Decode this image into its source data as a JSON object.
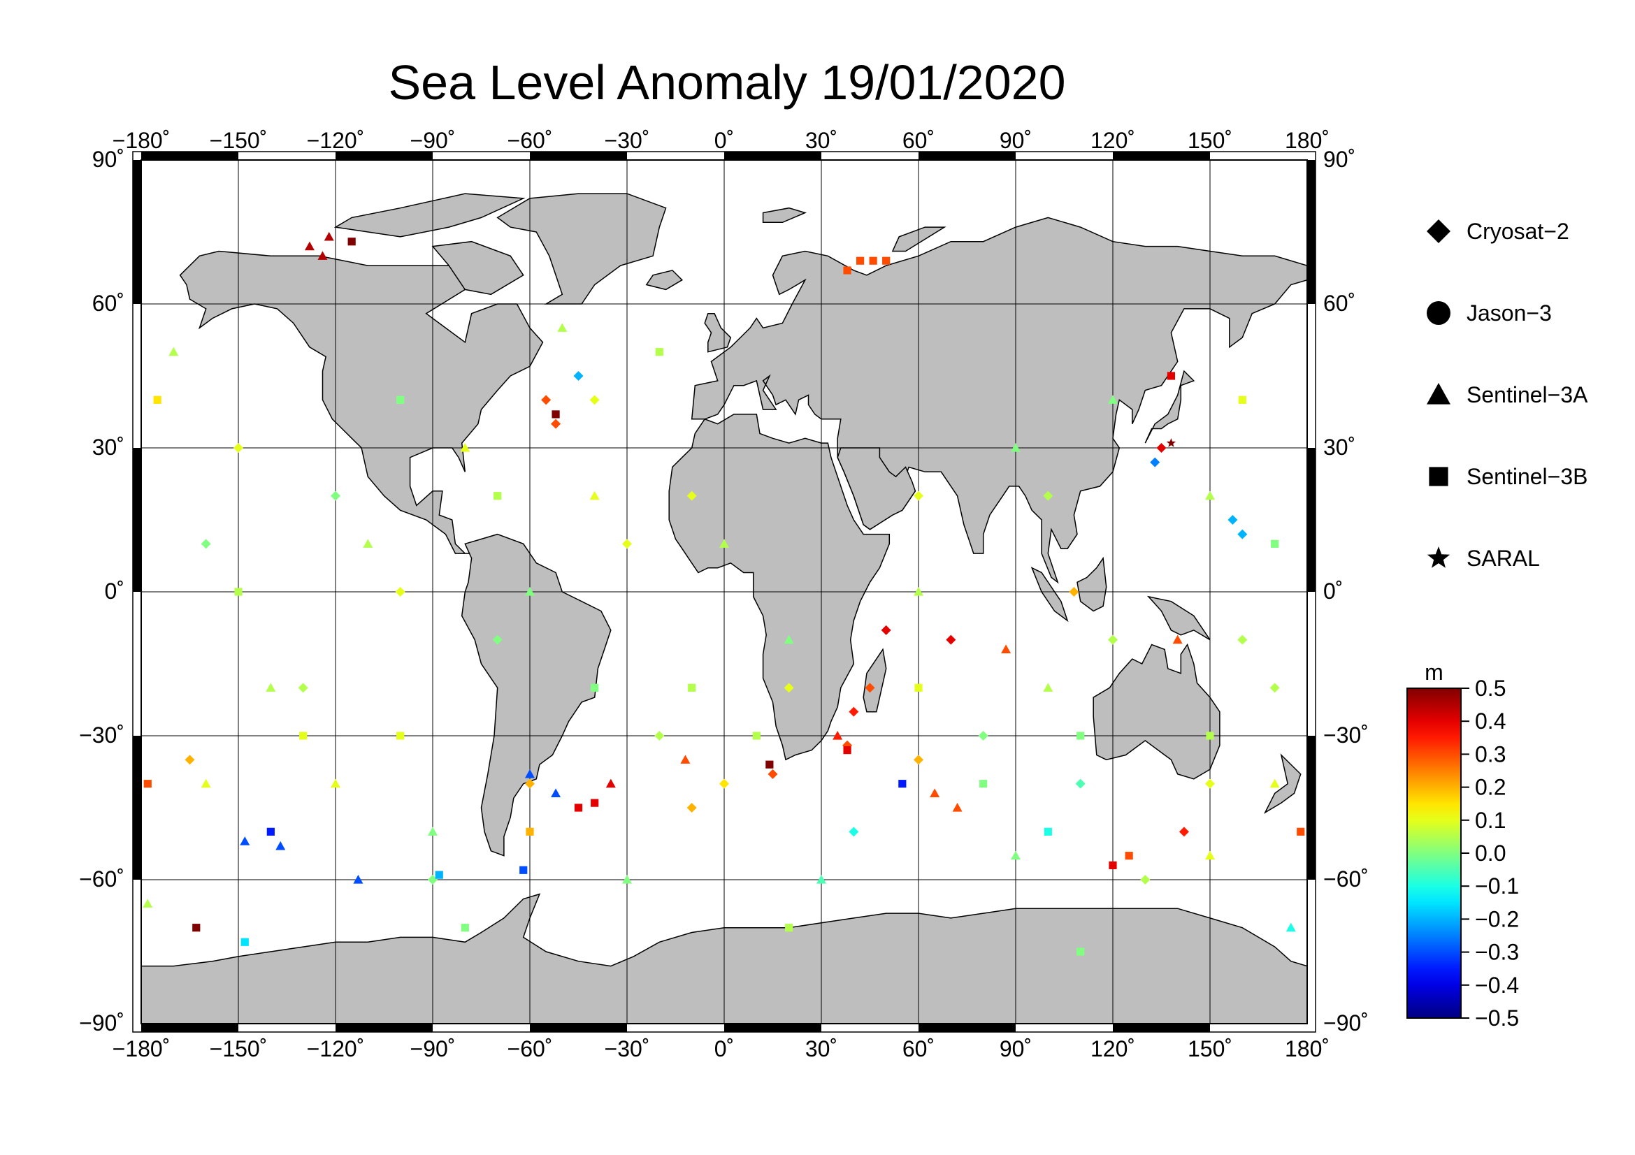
{
  "title": "Sea Level Anomaly 19/01/2020",
  "map": {
    "projection": "equirectangular",
    "lon_range": [
      -180,
      180
    ],
    "lat_range": [
      -90,
      90
    ],
    "grid_step_lon": 30,
    "grid_step_lat": 30,
    "land_color": "#bebebe",
    "ocean_color": "#ffffff",
    "lon_ticks": [
      "−180˚",
      "−150˚",
      "−120˚",
      "−90˚",
      "−60˚",
      "−30˚",
      "0˚",
      "30˚",
      "60˚",
      "90˚",
      "120˚",
      "150˚",
      "180˚"
    ],
    "lat_ticks_left": [
      "90˚",
      "60˚",
      "30˚",
      "0˚",
      "−30˚",
      "−60˚",
      "−90˚"
    ],
    "lat_ticks_right": [
      "90˚",
      "60˚",
      "30˚",
      "0˚",
      "−30˚",
      "−60˚",
      "−90˚"
    ]
  },
  "legend": {
    "items": [
      {
        "label": "Cryosat−2",
        "marker": "diamond"
      },
      {
        "label": "Jason−3",
        "marker": "circle"
      },
      {
        "label": "Sentinel−3A",
        "marker": "triangle"
      },
      {
        "label": "Sentinel−3B",
        "marker": "square"
      },
      {
        "label": "SARAL",
        "marker": "star"
      }
    ]
  },
  "colorbar": {
    "unit": "m",
    "min": -0.5,
    "max": 0.5,
    "ticks": [
      "0.5",
      "0.4",
      "0.3",
      "0.2",
      "0.1",
      "0.0",
      "−0.1",
      "−0.2",
      "−0.3",
      "−0.4",
      "−0.5"
    ],
    "colormap": "jet"
  },
  "chart_data": {
    "type": "scatter",
    "title": "Sea Level Anomaly 19/01/2020",
    "xlim": [
      -180,
      180
    ],
    "ylim": [
      -90,
      90
    ],
    "color_range": [
      -0.5,
      0.5
    ],
    "series": [
      {
        "name": "Cryosat−2",
        "marker": "diamond",
        "points": [
          [
            40,
            -25,
            0.35
          ],
          [
            50,
            -8,
            0.4
          ],
          [
            135,
            30,
            0.4
          ],
          [
            133,
            27,
            -0.25
          ],
          [
            157,
            15,
            -0.2
          ],
          [
            160,
            12,
            -0.2
          ],
          [
            142,
            -50,
            0.35
          ],
          [
            -45,
            45,
            -0.2
          ],
          [
            -52,
            35,
            0.3
          ],
          [
            45,
            -20,
            0.3
          ],
          [
            38,
            -32,
            0.3
          ],
          [
            -165,
            -35,
            0.2
          ],
          [
            -55,
            40,
            0.3
          ],
          [
            15,
            -38,
            0.3
          ],
          [
            60,
            -35,
            0.2
          ],
          [
            108,
            0,
            0.2
          ],
          [
            -40,
            40,
            0.1
          ],
          [
            70,
            -10,
            0.4
          ],
          [
            20,
            -20,
            0.1
          ],
          [
            100,
            20,
            0.05
          ],
          [
            -160,
            10,
            0.0
          ],
          [
            -130,
            -20,
            0.05
          ],
          [
            -100,
            0,
            0.1
          ],
          [
            -70,
            -10,
            0.0
          ],
          [
            -20,
            -30,
            0.05
          ],
          [
            0,
            -40,
            0.15
          ],
          [
            -10,
            -45,
            0.2
          ],
          [
            80,
            -30,
            0.0
          ],
          [
            110,
            -40,
            -0.05
          ],
          [
            150,
            -40,
            0.1
          ],
          [
            170,
            -20,
            0.05
          ],
          [
            -150,
            30,
            0.1
          ],
          [
            -120,
            20,
            0.0
          ],
          [
            -30,
            10,
            0.1
          ],
          [
            -10,
            20,
            0.1
          ],
          [
            60,
            20,
            0.1
          ],
          [
            130,
            -60,
            0.05
          ],
          [
            -90,
            -60,
            0.0
          ],
          [
            -60,
            -40,
            0.2
          ],
          [
            40,
            -50,
            -0.1
          ],
          [
            120,
            -10,
            0.05
          ],
          [
            160,
            -10,
            0.05
          ]
        ]
      },
      {
        "name": "Sentinel−3A",
        "marker": "triangle",
        "points": [
          [
            -122,
            74,
            0.45
          ],
          [
            -128,
            72,
            0.45
          ],
          [
            -124,
            70,
            0.45
          ],
          [
            -137,
            -53,
            -0.3
          ],
          [
            -148,
            -52,
            -0.3
          ],
          [
            -113,
            -60,
            -0.3
          ],
          [
            -60,
            -38,
            -0.3
          ],
          [
            -52,
            -42,
            -0.3
          ],
          [
            -35,
            -40,
            0.4
          ],
          [
            -12,
            -35,
            0.3
          ],
          [
            35,
            -30,
            0.35
          ],
          [
            65,
            -42,
            0.3
          ],
          [
            72,
            -45,
            0.3
          ],
          [
            87,
            -12,
            0.3
          ],
          [
            -160,
            -40,
            0.1
          ],
          [
            -140,
            -20,
            0.05
          ],
          [
            -110,
            10,
            0.05
          ],
          [
            -80,
            30,
            0.1
          ],
          [
            -40,
            20,
            0.1
          ],
          [
            0,
            10,
            0.05
          ],
          [
            20,
            -10,
            0.0
          ],
          [
            60,
            0,
            0.05
          ],
          [
            90,
            30,
            0.0
          ],
          [
            120,
            40,
            0.0
          ],
          [
            150,
            20,
            0.05
          ],
          [
            170,
            -40,
            0.1
          ],
          [
            -170,
            50,
            0.05
          ],
          [
            -90,
            -50,
            0.0
          ],
          [
            -30,
            -60,
            0.0
          ],
          [
            30,
            -60,
            -0.05
          ],
          [
            90,
            -55,
            0.0
          ],
          [
            150,
            -55,
            0.1
          ],
          [
            -120,
            -40,
            0.1
          ],
          [
            -60,
            0,
            0.0
          ],
          [
            100,
            -20,
            0.05
          ],
          [
            140,
            -10,
            0.3
          ],
          [
            175,
            -70,
            -0.1
          ],
          [
            -178,
            -65,
            0.05
          ],
          [
            -50,
            55,
            0.05
          ]
        ]
      },
      {
        "name": "Sentinel−3B",
        "marker": "square",
        "points": [
          [
            -115,
            73,
            0.5
          ],
          [
            42,
            69,
            0.3
          ],
          [
            46,
            69,
            0.3
          ],
          [
            50,
            69,
            0.3
          ],
          [
            38,
            67,
            0.3
          ],
          [
            -52,
            37,
            0.5
          ],
          [
            -163,
            -70,
            0.5
          ],
          [
            -148,
            -73,
            -0.15
          ],
          [
            -45,
            -45,
            0.4
          ],
          [
            -40,
            -44,
            0.4
          ],
          [
            14,
            -36,
            0.5
          ],
          [
            38,
            -33,
            0.4
          ],
          [
            55,
            -40,
            -0.35
          ],
          [
            120,
            -57,
            0.4
          ],
          [
            125,
            -55,
            0.3
          ],
          [
            138,
            45,
            0.4
          ],
          [
            -88,
            -59,
            -0.2
          ],
          [
            -62,
            -58,
            -0.3
          ],
          [
            -140,
            -50,
            -0.35
          ],
          [
            -175,
            40,
            0.15
          ],
          [
            -150,
            0,
            0.05
          ],
          [
            -130,
            -30,
            0.1
          ],
          [
            -100,
            40,
            0.0
          ],
          [
            -70,
            20,
            0.05
          ],
          [
            -40,
            -20,
            0.0
          ],
          [
            -20,
            50,
            0.05
          ],
          [
            10,
            -30,
            0.05
          ],
          [
            60,
            -20,
            0.1
          ],
          [
            80,
            -40,
            0.0
          ],
          [
            110,
            -30,
            0.0
          ],
          [
            150,
            -30,
            0.05
          ],
          [
            170,
            10,
            0.0
          ],
          [
            -100,
            -30,
            0.1
          ],
          [
            -10,
            -20,
            0.05
          ],
          [
            100,
            -50,
            -0.1
          ],
          [
            160,
            40,
            0.1
          ],
          [
            -60,
            -50,
            0.2
          ],
          [
            -80,
            -70,
            0.0
          ],
          [
            20,
            -70,
            0.05
          ],
          [
            110,
            -75,
            0.0
          ],
          [
            -178,
            -40,
            0.3
          ],
          [
            178,
            -50,
            0.3
          ]
        ]
      },
      {
        "name": "Jason−3",
        "marker": "circle",
        "points": []
      },
      {
        "name": "SARAL",
        "marker": "star",
        "points": [
          [
            138,
            31,
            0.5
          ]
        ]
      }
    ]
  }
}
